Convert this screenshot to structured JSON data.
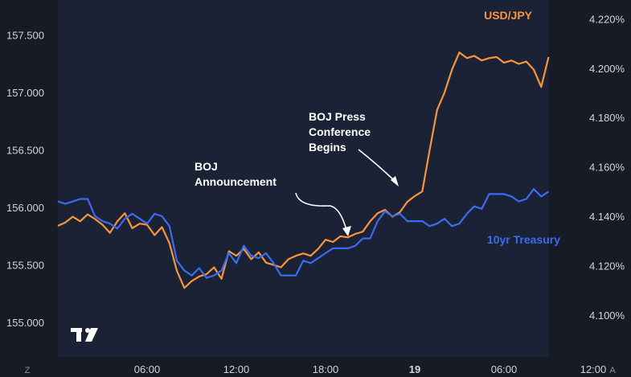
{
  "chart_data": {
    "type": "line",
    "colors": {
      "background": "#161b26",
      "plot_fill": "#1c2235",
      "usdjpy": "#f7953a",
      "treasury": "#3a6cf0",
      "text": "#d1d4dc"
    },
    "left_axis": {
      "ticks": [
        "157.500",
        "157.000",
        "156.500",
        "156.000",
        "155.500",
        "155.000"
      ],
      "ylim": [
        154.7,
        157.75
      ]
    },
    "right_axis": {
      "ticks": [
        "4.220%",
        "4.200%",
        "4.180%",
        "4.160%",
        "4.140%",
        "4.120%",
        "4.100%"
      ],
      "ylim": [
        4.083,
        4.225
      ]
    },
    "x_axis": {
      "ticks": [
        "06:00",
        "12:00",
        "18:00",
        "19",
        "06:00",
        "12:00"
      ],
      "bold_tick": "19",
      "hours": [
        6,
        12,
        18,
        24,
        30,
        36
      ],
      "xlim": [
        0,
        38.3
      ]
    },
    "axis_buttons": {
      "left": "Z",
      "right": "A"
    },
    "watermark": "TV",
    "series": [
      {
        "name": "USD/JPY",
        "axis": "left",
        "x": [
          0,
          0.5,
          1,
          1.5,
          2,
          2.5,
          3,
          3.5,
          4,
          4.5,
          5,
          5.5,
          6,
          6.5,
          7,
          7.5,
          8,
          8.5,
          9,
          9.5,
          10,
          10.5,
          11,
          11.5,
          12,
          12.5,
          13,
          13.5,
          14,
          14.5,
          15,
          15.5,
          16,
          16.5,
          17,
          17.5,
          18,
          18.5,
          19,
          19.5,
          20,
          20.5,
          21,
          21.5,
          22,
          22.5,
          23,
          23.5,
          24,
          24.5,
          25,
          25.5,
          26,
          26.5,
          27,
          27.5,
          28,
          28.5,
          29,
          29.5,
          30,
          30.5,
          31,
          31.5,
          32,
          32.5,
          33
        ],
        "y": [
          155.84,
          155.87,
          155.92,
          155.88,
          155.94,
          155.9,
          155.85,
          155.78,
          155.88,
          155.95,
          155.82,
          155.86,
          155.85,
          155.76,
          155.83,
          155.69,
          155.45,
          155.3,
          155.36,
          155.4,
          155.42,
          155.48,
          155.38,
          155.62,
          155.58,
          155.64,
          155.55,
          155.61,
          155.52,
          155.5,
          155.48,
          155.55,
          155.58,
          155.6,
          155.58,
          155.64,
          155.72,
          155.7,
          155.75,
          155.74,
          155.77,
          155.79,
          155.88,
          155.95,
          155.98,
          155.92,
          155.96,
          156.05,
          156.1,
          156.14,
          156.5,
          156.85,
          157.0,
          157.2,
          157.35,
          157.3,
          157.32,
          157.28,
          157.3,
          157.31,
          157.26,
          157.28,
          157.25,
          157.27,
          157.2,
          157.05,
          157.31
        ]
      },
      {
        "name": "10yr Treasury",
        "axis": "right",
        "x": [
          0,
          0.5,
          1,
          1.5,
          2,
          2.5,
          3,
          3.5,
          4,
          4.5,
          5,
          5.5,
          6,
          6.5,
          7,
          7.5,
          8,
          8.5,
          9,
          9.5,
          10,
          10.5,
          11,
          11.5,
          12,
          12.5,
          13,
          13.5,
          14,
          14.5,
          15,
          15.5,
          16,
          16.5,
          17,
          17.5,
          18,
          18.5,
          19,
          19.5,
          20,
          20.5,
          21,
          21.5,
          22,
          22.5,
          23,
          23.5,
          24,
          24.5,
          25,
          25.5,
          26,
          26.5,
          27,
          27.5,
          28,
          28.5,
          29,
          29.5,
          30,
          30.5,
          31,
          31.5,
          32,
          32.5,
          33
        ],
        "y": [
          4.146,
          4.145,
          4.146,
          4.147,
          4.147,
          4.14,
          4.138,
          4.137,
          4.135,
          4.139,
          4.141,
          4.139,
          4.137,
          4.141,
          4.14,
          4.136,
          4.122,
          4.118,
          4.116,
          4.119,
          4.115,
          4.116,
          4.118,
          4.125,
          4.121,
          4.128,
          4.124,
          4.123,
          4.125,
          4.121,
          4.116,
          4.116,
          4.116,
          4.122,
          4.121,
          4.123,
          4.125,
          4.127,
          4.127,
          4.127,
          4.128,
          4.131,
          4.131,
          4.138,
          4.142,
          4.14,
          4.141,
          4.138,
          4.138,
          4.138,
          4.136,
          4.137,
          4.139,
          4.136,
          4.137,
          4.141,
          4.144,
          4.143,
          4.149,
          4.149,
          4.149,
          4.148,
          4.146,
          4.147,
          4.151,
          4.148,
          4.15
        ]
      }
    ],
    "annotations": [
      {
        "lines": [
          "BOJ",
          "Announcement"
        ],
        "at_hour": 20.8
      },
      {
        "lines": [
          "BOJ Press",
          "Conference",
          "Begins"
        ],
        "at_hour": 24.2
      }
    ]
  }
}
